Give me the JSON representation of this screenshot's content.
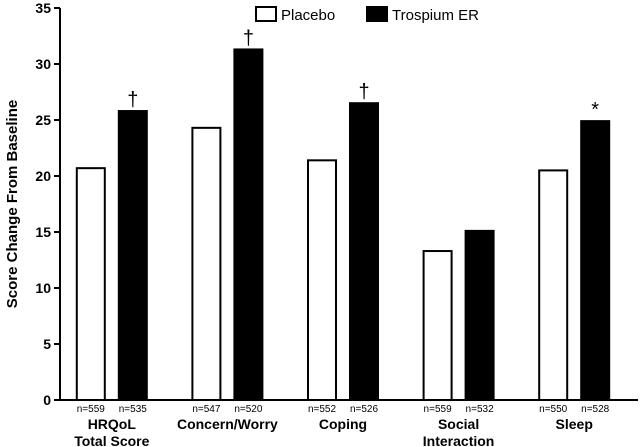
{
  "chart_data": {
    "type": "bar",
    "ylabel": "Score Change From Baseline",
    "ylim": [
      0,
      35
    ],
    "yticks": [
      0,
      5,
      10,
      15,
      20,
      25,
      30,
      35
    ],
    "legend_position": "top-center",
    "categories": [
      [
        "HRQoL",
        "Total Score"
      ],
      [
        "Concern/Worry"
      ],
      [
        "Coping"
      ],
      [
        "Social",
        "Interaction"
      ],
      [
        "Sleep"
      ]
    ],
    "series": [
      {
        "name": "Placebo",
        "fill": "#ffffff",
        "values": [
          20.7,
          24.3,
          21.4,
          13.3,
          20.5
        ],
        "n": [
          "n=559",
          "n=547",
          "n=552",
          "n=559",
          "n=550"
        ]
      },
      {
        "name": "Trospium ER",
        "fill": "#000000",
        "values": [
          25.8,
          31.3,
          26.5,
          15.1,
          24.9
        ],
        "n": [
          "n=535",
          "n=520",
          "n=526",
          "n=532",
          "n=528"
        ]
      }
    ],
    "significance": [
      "†",
      "†",
      "†",
      "",
      "*"
    ]
  }
}
